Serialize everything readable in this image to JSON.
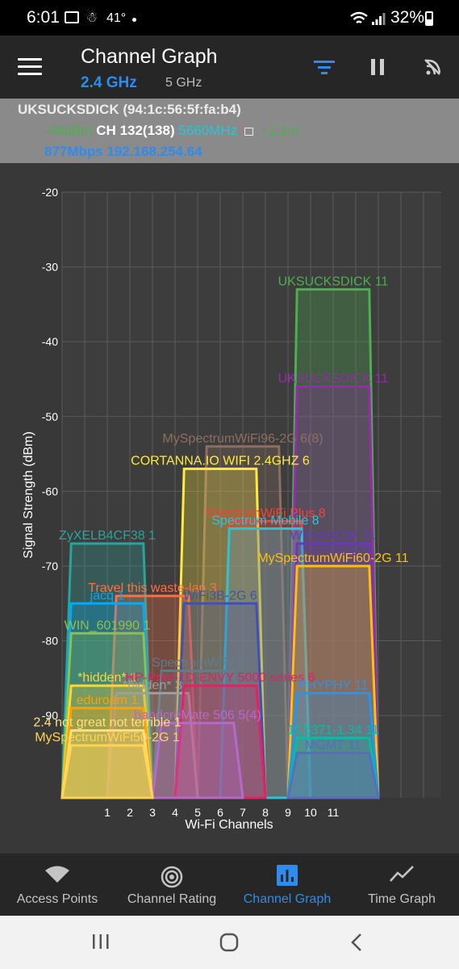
{
  "status_bar": {
    "time": "6:01",
    "temperature": "41°",
    "battery": "32%"
  },
  "header": {
    "title": "Channel Graph",
    "band_24": "2.4 GHz",
    "band_5": "5 GHz"
  },
  "connection": {
    "ssid": "UKSUCKSDICK (94:1c:56:5f:fa:b4)",
    "signal": "-48dBm",
    "ch_label": "CH",
    "channel": "132(138)",
    "frequency": "5660MHz",
    "distance": "~1.1m",
    "speed_ip": "877Mbps 192.168.254.64"
  },
  "chart_data": {
    "type": "area",
    "xlabel": "Wi-Fi Channels",
    "ylabel": "Signal Strength (dBm)",
    "ylim": [
      -101,
      -20
    ],
    "y_ticks": [
      -20,
      -30,
      -40,
      -50,
      -60,
      -70,
      -80,
      -90
    ],
    "x_ticks": [
      "1",
      "2",
      "3",
      "4",
      "5",
      "6",
      "7",
      "8",
      "9",
      "10",
      "11"
    ],
    "grid": true,
    "networks": [
      {
        "label": "UKSUCKSDICK 11",
        "channel": 11,
        "dbm": -33,
        "color": "#4caf50"
      },
      {
        "label": "UKSUCKSDICK 11",
        "channel": 11,
        "dbm": -46,
        "color": "#9c27b0"
      },
      {
        "label": "MySpectrumWiFi96-2G 6(8)",
        "channel": 7,
        "dbm": -54,
        "color": "#8d6e63"
      },
      {
        "label": "CORTANNA.IO WIFI 2.4GHZ 6",
        "channel": 6,
        "dbm": -57,
        "color": "#ffeb3b"
      },
      {
        "label": "SpectrumWiFi Plus 8",
        "channel": 8,
        "dbm": -64,
        "color": "#f44336"
      },
      {
        "label": "Spectrum Mobile 8",
        "channel": 8,
        "dbm": -65,
        "color": "#26c6da"
      },
      {
        "label": "WIFIABC9F 11",
        "channel": 11,
        "dbm": -67,
        "color": "#673ab7"
      },
      {
        "label": "MySpectrumWiFi60-2G 11",
        "channel": 11,
        "dbm": -70,
        "color": "#ffc107"
      },
      {
        "label": "ZyXELB4CF38 1",
        "channel": 1,
        "dbm": -67,
        "color": "#26a69a"
      },
      {
        "label": "Travel this waste-lan 3",
        "channel": 3,
        "dbm": -74,
        "color": "#ff7043"
      },
      {
        "label": "jacq 1",
        "channel": 1,
        "dbm": -75,
        "color": "#03a9f4"
      },
      {
        "label": "WiFi3B-2G 6",
        "channel": 6,
        "dbm": -75,
        "color": "#3f51b5"
      },
      {
        "label": "WIN_601990 1",
        "channel": 1,
        "dbm": -79,
        "color": "#8bc34a"
      },
      {
        "label": "*hidden* 1",
        "channel": 1,
        "dbm": -86,
        "color": "#fdd835"
      },
      {
        "label": "SpectrumWiFi 5",
        "channel": 5,
        "dbm": -84,
        "color": "#607d8b"
      },
      {
        "label": "*hidden* 3",
        "channel": 3,
        "dbm": -87,
        "color": "#9e9e9e"
      },
      {
        "label": "HP-Print-1D-ENVY 5000 series 6",
        "channel": 6,
        "dbm": -86,
        "color": "#e91e63"
      },
      {
        "label": "PHYPHY 11",
        "channel": 11,
        "dbm": -87,
        "color": "#2196f3"
      },
      {
        "label": "eduroam 1",
        "channel": 1,
        "dbm": -89,
        "color": "#ffa000"
      },
      {
        "label": "bandcreMate 506 5(4)",
        "channel": 5,
        "dbm": -91,
        "color": "#ba68c8"
      },
      {
        "label": "2.4 not great not terrible 1",
        "channel": 1,
        "dbm": -92,
        "color": "#ffe082"
      },
      {
        "label": "1C5371-1.34 11",
        "channel": 11,
        "dbm": -93,
        "color": "#00bfa5"
      },
      {
        "label": "MySpectrumWiFi50-2G 1",
        "channel": 1,
        "dbm": -94,
        "color": "#ffd54f"
      },
      {
        "label": "MGMT 11",
        "channel": 11,
        "dbm": -95,
        "color": "#5c6bc0"
      }
    ]
  },
  "nav": {
    "access_points": "Access Points",
    "channel_rating": "Channel Rating",
    "channel_graph": "Channel Graph",
    "time_graph": "Time Graph"
  },
  "colors": {
    "accent": "#2d8cf0",
    "header_bg": "#262626",
    "graph_bg": "#383838"
  }
}
